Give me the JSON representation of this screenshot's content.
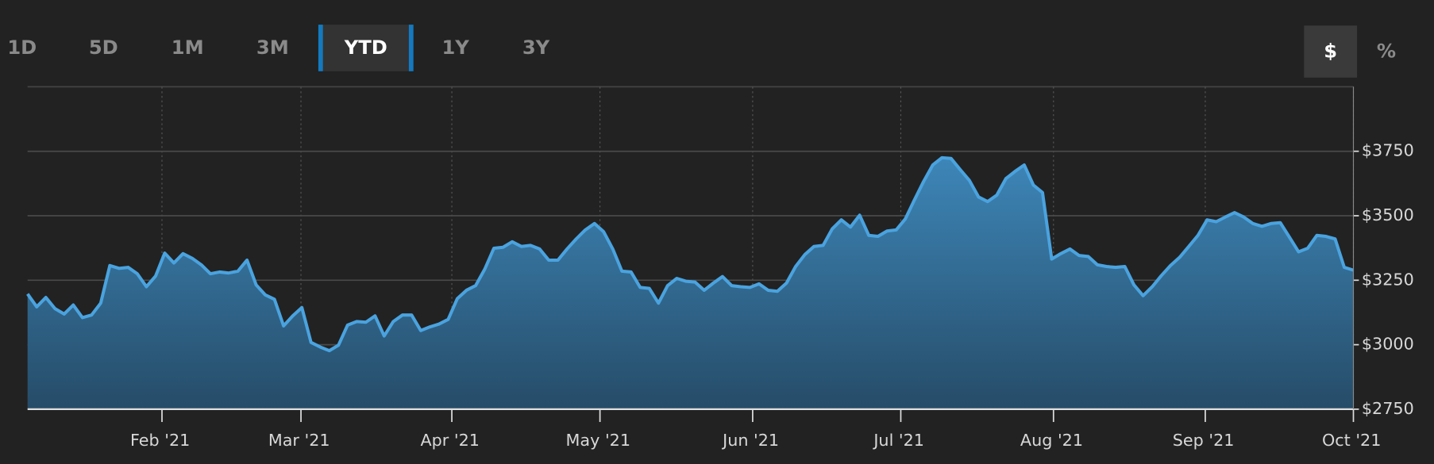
{
  "controls": {
    "ranges": [
      "1D",
      "5D",
      "1M",
      "3M",
      "YTD",
      "1Y",
      "3Y"
    ],
    "selected_range": 4,
    "units": [
      "$",
      "%"
    ],
    "selected_unit": 0
  },
  "chart_data": {
    "type": "area",
    "series": [
      {
        "color": "#4aa3df",
        "values": [
          3197,
          3147,
          3183,
          3140,
          3119,
          3154,
          3105,
          3115,
          3161,
          3307,
          3296,
          3300,
          3275,
          3225,
          3266,
          3355,
          3317,
          3353,
          3335,
          3310,
          3275,
          3282,
          3278,
          3285,
          3328,
          3232,
          3193,
          3176,
          3073,
          3112,
          3144,
          3009,
          2991,
          2977,
          2998,
          3076,
          3090,
          3087,
          3112,
          3034,
          3090,
          3115,
          3115,
          3055,
          3069,
          3080,
          3098,
          3179,
          3211,
          3229,
          3293,
          3374,
          3378,
          3399,
          3381,
          3385,
          3371,
          3328,
          3328,
          3371,
          3410,
          3445,
          3470,
          3438,
          3371,
          3285,
          3282,
          3222,
          3218,
          3161,
          3229,
          3257,
          3246,
          3243,
          3211,
          3239,
          3264,
          3229,
          3225,
          3222,
          3236,
          3211,
          3207,
          3239,
          3303,
          3349,
          3381,
          3385,
          3449,
          3484,
          3456,
          3502,
          3424,
          3420,
          3441,
          3445,
          3488,
          3562,
          3633,
          3697,
          3725,
          3722,
          3679,
          3637,
          3573,
          3555,
          3580,
          3644,
          3672,
          3697,
          3619,
          3590,
          3332,
          3353,
          3371,
          3346,
          3342,
          3310,
          3303,
          3300,
          3303,
          3232,
          3190,
          3225,
          3268,
          3307,
          3339,
          3381,
          3424,
          3484,
          3477,
          3495,
          3512,
          3495,
          3470,
          3459,
          3470,
          3473,
          3417,
          3360,
          3374,
          3424,
          3420,
          3410,
          3300,
          3289
        ]
      }
    ],
    "xlim": [
      0,
      145
    ],
    "xticks": [
      {
        "value": 14.7,
        "label": "Feb '21"
      },
      {
        "value": 29.9,
        "label": "Mar '21"
      },
      {
        "value": 46.4,
        "label": "Apr '21"
      },
      {
        "value": 62.6,
        "label": "May '21"
      },
      {
        "value": 79.3,
        "label": "Jun '21"
      },
      {
        "value": 95.5,
        "label": "Jul '21"
      },
      {
        "value": 112.2,
        "label": "Aug '21"
      },
      {
        "value": 128.8,
        "label": "Sep '21"
      },
      {
        "value": 145,
        "label": "Oct '21"
      }
    ],
    "ylim": [
      2750,
      4000
    ],
    "yticks": [
      {
        "value": 2750,
        "label": "$2750"
      },
      {
        "value": 3000,
        "label": "$3000"
      },
      {
        "value": 3250,
        "label": "$3250"
      },
      {
        "value": 3500,
        "label": "$3500"
      },
      {
        "value": 3750,
        "label": "$3750"
      }
    ],
    "grid": true
  }
}
